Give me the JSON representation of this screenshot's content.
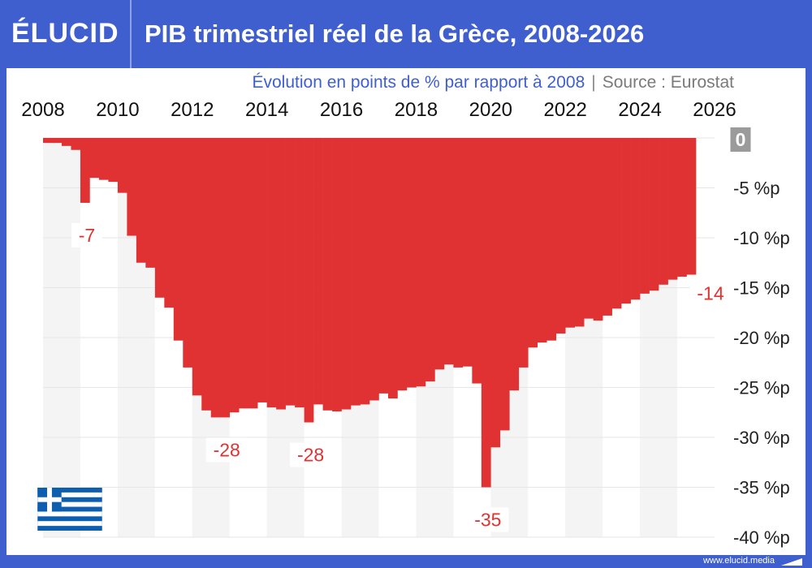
{
  "header": {
    "logo": "ÉLUCID",
    "title": "PIB trimestriel réel de la Grèce, 2008-2026"
  },
  "subtitle": {
    "text": "Évolution en points de % par rapport à 2008",
    "separator": "|",
    "source": "Source : Eurostat"
  },
  "footer": {
    "url": "www.elucid.media"
  },
  "colors": {
    "frame": "#3f5fcf",
    "bar": "#e03232",
    "stripe": "#f4f4f4"
  },
  "icons": {
    "flag": "greece-flag-icon"
  },
  "chart_data": {
    "type": "bar",
    "x_start": 2008.0,
    "quarter_step": 0.25,
    "xlim": [
      2008,
      2026
    ],
    "ylim": [
      -40,
      0
    ],
    "x_ticks": [
      "2008",
      "2010",
      "2012",
      "2014",
      "2016",
      "2018",
      "2020",
      "2022",
      "2024",
      "2026"
    ],
    "y_ticks": [
      "0",
      "-5 %p",
      "-10 %p",
      "-15 %p",
      "-20 %p",
      "-25 %p",
      "-30 %p",
      "-35 %p",
      "-40 %p"
    ],
    "values": [
      -0.5,
      -0.5,
      -0.8,
      -1.2,
      -6.5,
      -4.0,
      -4.2,
      -4.4,
      -5.5,
      -9.8,
      -12.5,
      -13.0,
      -16.0,
      -17.0,
      -20.3,
      -23.0,
      -25.8,
      -27.3,
      -28.0,
      -28.0,
      -27.5,
      -27.1,
      -27.1,
      -26.5,
      -27.0,
      -27.2,
      -26.8,
      -27.0,
      -28.5,
      -26.7,
      -27.3,
      -27.4,
      -27.2,
      -26.8,
      -26.7,
      -26.3,
      -25.6,
      -26.1,
      -25.3,
      -25.0,
      -24.9,
      -24.4,
      -23.2,
      -22.7,
      -23.0,
      -22.9,
      -24.6,
      -35.0,
      -31.0,
      -29.3,
      -25.3,
      -23.0,
      -21.0,
      -20.5,
      -20.3,
      -19.6,
      -19.0,
      -18.9,
      -18.1,
      -18.3,
      -17.8,
      -17.1,
      -16.6,
      -16.2,
      -15.6,
      -15.3,
      -14.7,
      -14.2,
      -13.9,
      -13.7
    ],
    "annotations": [
      {
        "label": "-7",
        "x": 2009.0,
        "y": -6.5
      },
      {
        "label": "-28",
        "x": 2012.75,
        "y": -28.0
      },
      {
        "label": "-28",
        "x": 2015.0,
        "y": -28.5
      },
      {
        "label": "-35",
        "x": 2019.75,
        "y": -35.0
      },
      {
        "label": "0",
        "x": 2026.0,
        "y": 0
      },
      {
        "label": "-14",
        "x": 2025.25,
        "y": -13.7
      }
    ]
  }
}
